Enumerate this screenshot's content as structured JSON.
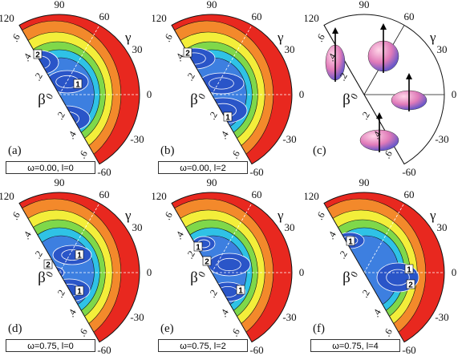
{
  "axis": {
    "gamma_symbol": "γ",
    "beta_symbol": "β",
    "gamma_ticks": [
      "120",
      "90",
      "60",
      "30",
      "0",
      "-30",
      "-60"
    ],
    "beta_ticks": [
      ".6",
      ".4",
      ".2",
      "0",
      ".2",
      ".4",
      ".6"
    ]
  },
  "colors": {
    "outer": "#e8281f",
    "orange": "#f3892b",
    "yellow": "#f3ee3a",
    "green": "#7fd84a",
    "cyan": "#2fc2e6",
    "blue": "#3d7fe0",
    "deep_blue": "#2a55c8"
  },
  "panels": [
    {
      "tag": "(a)",
      "caption": "ω=0.00, l=0",
      "points": [
        {
          "label": "2"
        },
        {
          "label": "1"
        }
      ]
    },
    {
      "tag": "(b)",
      "caption": "ω=0.00, l=2",
      "points": [
        {
          "label": "2"
        },
        {
          "label": "1"
        }
      ]
    },
    {
      "tag": "(c)",
      "caption": ""
    },
    {
      "tag": "(d)",
      "caption": "ω=0.75, l=0",
      "points": [
        {
          "label": "1"
        },
        {
          "label": "2"
        },
        {
          "label": "1"
        }
      ]
    },
    {
      "tag": "(e)",
      "caption": "ω=0.75, l=2",
      "points": [
        {
          "label": "1"
        },
        {
          "label": "2"
        },
        {
          "label": "1"
        }
      ]
    },
    {
      "tag": "(f)",
      "caption": "ω=0.75, l=4",
      "points": [
        {
          "label": "1"
        },
        {
          "label": "1"
        },
        {
          "label": "2"
        }
      ]
    }
  ]
}
